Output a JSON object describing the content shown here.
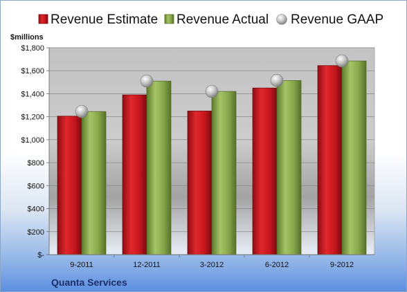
{
  "chart_data": {
    "type": "bar",
    "title": "",
    "ylabel": "$millions",
    "company": "Quanta Services",
    "categories": [
      "9-2011",
      "12-2011",
      "3-2012",
      "6-2012",
      "9-2012"
    ],
    "series": [
      {
        "name": "Revenue Estimate",
        "kind": "bar",
        "color": "#c8141c",
        "values": [
          1205,
          1390,
          1250,
          1450,
          1645
        ]
      },
      {
        "name": "Revenue Actual",
        "kind": "bar",
        "color": "#8aa84e",
        "values": [
          1245,
          1510,
          1420,
          1515,
          1685
        ]
      },
      {
        "name": "Revenue GAAP",
        "kind": "marker",
        "color": "#b8b8b8",
        "values": [
          1245,
          1510,
          1420,
          1515,
          1685
        ]
      }
    ],
    "ylim": [
      0,
      1800
    ],
    "yticks": [
      0,
      200,
      400,
      600,
      800,
      1000,
      1200,
      1400,
      1600,
      1800
    ],
    "ytick_labels": [
      "$-",
      "$200",
      "$400",
      "$600",
      "$800",
      "$1,000",
      "$1,200",
      "$1,400",
      "$1,600",
      "$1,800"
    ],
    "grid": true,
    "legend_position": "top"
  }
}
